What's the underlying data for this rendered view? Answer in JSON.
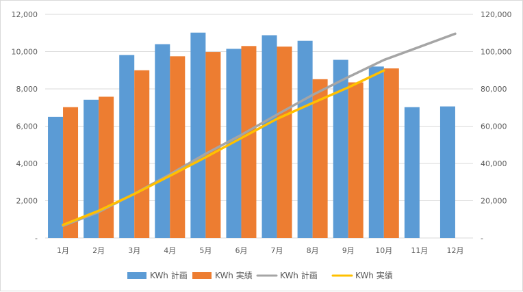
{
  "chart_data": {
    "type": "bar",
    "categories": [
      "1月",
      "2月",
      "3月",
      "4月",
      "5月",
      "6月",
      "7月",
      "8月",
      "9月",
      "10月",
      "11月",
      "12月"
    ],
    "y_left": {
      "min": 0,
      "max": 12000,
      "step": 2000,
      "tick_labels": [
        "-",
        "2,000",
        "4,000",
        "6,000",
        "8,000",
        "10,000",
        "12,000"
      ]
    },
    "y_right": {
      "min": 0,
      "max": 120000,
      "step": 20000,
      "tick_labels": [
        "-",
        "20,000",
        "40,000",
        "60,000",
        "80,000",
        "100,000",
        "120,000"
      ]
    },
    "grid": true,
    "legend_position": "bottom",
    "series": [
      {
        "name": "KWh 計画",
        "kind": "bar",
        "axis": "left",
        "color": "#5b9bd5",
        "values": [
          6500,
          7420,
          9820,
          10400,
          11020,
          10150,
          10880,
          10580,
          9560,
          9200,
          7020,
          7060
        ]
      },
      {
        "name": "KWh 実績",
        "kind": "bar",
        "axis": "left",
        "color": "#ed7d31",
        "values": [
          7020,
          7580,
          9000,
          9750,
          9980,
          10300,
          10270,
          8520,
          8350,
          9100,
          null,
          null
        ]
      },
      {
        "name": "KWh 計画",
        "kind": "line",
        "axis": "right",
        "color": "#a5a5a5",
        "values": [
          6500,
          13920,
          23740,
          34140,
          45160,
          55310,
          66190,
          76770,
          86330,
          95530,
          102550,
          109610
        ]
      },
      {
        "name": "KWh 実績",
        "kind": "line",
        "axis": "right",
        "color": "#ffc000",
        "values": [
          7020,
          14600,
          23600,
          33350,
          43330,
          53630,
          63900,
          72420,
          80770,
          89870,
          null,
          null
        ]
      }
    ]
  }
}
